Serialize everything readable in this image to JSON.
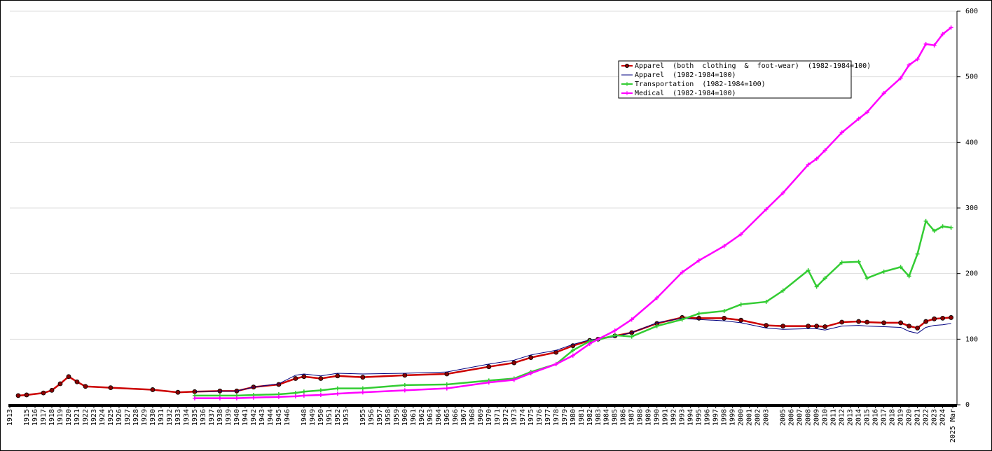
{
  "chart_data": {
    "type": "line",
    "x": [
      1914,
      1915,
      1917,
      1918,
      1919,
      1920,
      1921,
      1922,
      1925,
      1930,
      1933,
      1935,
      1938,
      1940,
      1942,
      1945,
      1947,
      1948,
      1950,
      1952,
      1955,
      1960,
      1965,
      1970,
      1973,
      1975,
      1978,
      1980,
      1982,
      1983,
      1985,
      1987,
      1990,
      1993,
      1995,
      1998,
      2000,
      2003,
      2005,
      2008,
      2009,
      2010,
      2012,
      2014,
      2015,
      2017,
      2019,
      2020,
      2021,
      2022,
      2023,
      2024,
      2025
    ],
    "series": [
      {
        "name": "Apparel  (both  clothing  &  foot-wear)  (1982-1984=100)",
        "color": "#cc0000",
        "marker": "circle",
        "values": [
          14,
          15,
          18,
          22,
          32,
          43,
          35,
          28,
          26,
          23,
          19,
          20,
          21,
          21,
          27,
          31,
          40,
          43,
          40,
          44,
          42,
          45,
          47,
          58,
          64,
          72,
          80,
          90,
          98,
          100,
          105,
          110,
          124,
          133,
          132,
          132,
          129,
          121,
          120,
          120,
          120,
          119,
          126,
          127,
          126,
          125,
          125,
          120,
          117,
          127,
          131,
          132,
          133
        ]
      },
      {
        "name": "Apparel  (1982-1984=100)",
        "color": "#000080",
        "marker": "none",
        "values": [
          null,
          null,
          null,
          null,
          null,
          null,
          null,
          null,
          null,
          null,
          null,
          20,
          21,
          21,
          27,
          32,
          45,
          47,
          44,
          48,
          47,
          48,
          50,
          62,
          68,
          76,
          83,
          92,
          99,
          100,
          104,
          110,
          125,
          132,
          130,
          128,
          125,
          117,
          115,
          116,
          116,
          114,
          120,
          121,
          120,
          119,
          118,
          112,
          109,
          118,
          121,
          122,
          124
        ]
      },
      {
        "name": "Transportation  (1982-1984=100)",
        "color": "#33cc33",
        "marker": "plus",
        "values": [
          null,
          null,
          null,
          null,
          null,
          null,
          null,
          null,
          null,
          null,
          null,
          14,
          14,
          14,
          15,
          16,
          18,
          20,
          22,
          25,
          25,
          30,
          31,
          37,
          40,
          50,
          62,
          83,
          97,
          99,
          106,
          104,
          120,
          130,
          139,
          143,
          153,
          157,
          174,
          205,
          180,
          193,
          217,
          218,
          193,
          203,
          210,
          196,
          230,
          280,
          265,
          272,
          270
        ]
      },
      {
        "name": "Medical  (1982-1984=100)",
        "color": "#ff00ff",
        "marker": "plus",
        "values": [
          null,
          null,
          null,
          null,
          null,
          null,
          null,
          null,
          null,
          null,
          null,
          10,
          10,
          10,
          11,
          12,
          13,
          14,
          15,
          17,
          19,
          22,
          25,
          34,
          38,
          48,
          62,
          75,
          93,
          100,
          113,
          130,
          163,
          202,
          220,
          242,
          260,
          298,
          323,
          366,
          375,
          388,
          415,
          436,
          446,
          475,
          498,
          518,
          527,
          550,
          548,
          565,
          575
        ]
      }
    ],
    "xlim": [
      1913,
      2025.2
    ],
    "xticks": [
      1913,
      1915,
      1916,
      1917,
      1918,
      1919,
      1920,
      1921,
      1922,
      1923,
      1924,
      1925,
      1926,
      1927,
      1928,
      1929,
      1930,
      1931,
      1932,
      1933,
      1934,
      1935,
      1936,
      1937,
      1938,
      1939,
      1940,
      1941,
      1942,
      1943,
      1944,
      1945,
      1946,
      1948,
      1949,
      1950,
      1951,
      1952,
      1953,
      1955,
      1956,
      1957,
      1958,
      1959,
      1960,
      1961,
      1962,
      1963,
      1964,
      1965,
      1966,
      1967,
      1968,
      1969,
      1970,
      1971,
      1972,
      1973,
      1974,
      1975,
      1976,
      1977,
      1978,
      1979,
      1980,
      1981,
      1982,
      1983,
      1984,
      1985,
      1986,
      1987,
      1988,
      1989,
      1990,
      1991,
      1992,
      1993,
      1994,
      1995,
      1996,
      1997,
      1998,
      1999,
      2000,
      2001,
      2002,
      2003,
      2005,
      2006,
      2007,
      2008,
      2009,
      2010,
      2011,
      2012,
      2013,
      2014,
      2015,
      2016,
      2017,
      2018,
      2019,
      2020,
      2021,
      2022,
      2023,
      2024,
      {
        "value": 2025.2,
        "label": "2025 Mar"
      }
    ],
    "ylim": [
      0,
      600
    ],
    "yticks": [
      0,
      100,
      200,
      300,
      400,
      500,
      600
    ],
    "grid": true,
    "legend": "top-right"
  }
}
